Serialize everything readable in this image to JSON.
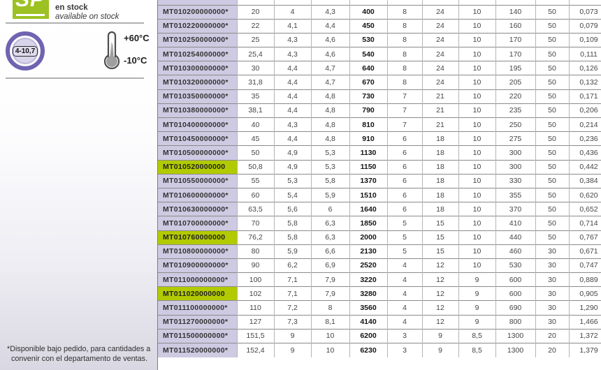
{
  "sidebar": {
    "stock_badge": {
      "logo": "SP",
      "line1": "en stock",
      "line2": "available on stock",
      "color": "#9cc122"
    },
    "size_badge": {
      "value": "4-10,7",
      "ring_color": "#6f64b0"
    },
    "temperature": {
      "max": "+60°C",
      "min": "-10°C"
    },
    "footnote": {
      "line1": "*Disponible bajo pedido, para cantidades a",
      "line2": "convenir con el departamento de ventas."
    }
  },
  "table": {
    "part_column_color": "#cecae2",
    "highlight_color": "#b2ca00",
    "rows": [
      {
        "part": "MT010200000000*",
        "highlight": false,
        "values": [
          "20",
          "4",
          "4,3",
          "400",
          "8",
          "24",
          "10",
          "140",
          "50",
          "0,073"
        ]
      },
      {
        "part": "MT010220000000*",
        "highlight": false,
        "values": [
          "22",
          "4,1",
          "4,4",
          "450",
          "8",
          "24",
          "10",
          "160",
          "50",
          "0,079"
        ]
      },
      {
        "part": "MT010250000000*",
        "highlight": false,
        "values": [
          "25",
          "4,3",
          "4,6",
          "530",
          "8",
          "24",
          "10",
          "170",
          "50",
          "0,109"
        ]
      },
      {
        "part": "MT010254000000*",
        "highlight": false,
        "values": [
          "25,4",
          "4,3",
          "4,6",
          "540",
          "8",
          "24",
          "10",
          "170",
          "50",
          "0,111"
        ]
      },
      {
        "part": "MT010300000000*",
        "highlight": false,
        "values": [
          "30",
          "4,4",
          "4,7",
          "640",
          "8",
          "24",
          "10",
          "195",
          "50",
          "0,126"
        ]
      },
      {
        "part": "MT010320000000*",
        "highlight": false,
        "values": [
          "31,8",
          "4,4",
          "4,7",
          "670",
          "8",
          "24",
          "10",
          "205",
          "50",
          "0,132"
        ]
      },
      {
        "part": "MT010350000000*",
        "highlight": false,
        "values": [
          "35",
          "4,4",
          "4,8",
          "730",
          "7",
          "21",
          "10",
          "220",
          "50",
          "0,171"
        ]
      },
      {
        "part": "MT010380000000*",
        "highlight": false,
        "values": [
          "38,1",
          "4,4",
          "4,8",
          "790",
          "7",
          "21",
          "10",
          "235",
          "50",
          "0,206"
        ]
      },
      {
        "part": "MT010400000000*",
        "highlight": false,
        "values": [
          "40",
          "4,3",
          "4,8",
          "810",
          "7",
          "21",
          "10",
          "250",
          "50",
          "0,214"
        ]
      },
      {
        "part": "MT010450000000*",
        "highlight": false,
        "values": [
          "45",
          "4,4",
          "4,8",
          "910",
          "6",
          "18",
          "10",
          "275",
          "50",
          "0,236"
        ]
      },
      {
        "part": "MT010500000000*",
        "highlight": false,
        "values": [
          "50",
          "4,9",
          "5,3",
          "1130",
          "6",
          "18",
          "10",
          "300",
          "50",
          "0,436"
        ]
      },
      {
        "part": "MT010520000000",
        "highlight": true,
        "values": [
          "50,8",
          "4,9",
          "5,3",
          "1150",
          "6",
          "18",
          "10",
          "300",
          "50",
          "0,442"
        ]
      },
      {
        "part": "MT010550000000*",
        "highlight": false,
        "values": [
          "55",
          "5,3",
          "5,8",
          "1370",
          "6",
          "18",
          "10",
          "330",
          "50",
          "0,384"
        ]
      },
      {
        "part": "MT010600000000*",
        "highlight": false,
        "values": [
          "60",
          "5,4",
          "5,9",
          "1510",
          "6",
          "18",
          "10",
          "355",
          "50",
          "0,620"
        ]
      },
      {
        "part": "MT010630000000*",
        "highlight": false,
        "values": [
          "63,5",
          "5,6",
          "6",
          "1640",
          "6",
          "18",
          "10",
          "370",
          "50",
          "0,652"
        ]
      },
      {
        "part": "MT010700000000*",
        "highlight": false,
        "values": [
          "70",
          "5,8",
          "6,3",
          "1850",
          "5",
          "15",
          "10",
          "410",
          "50",
          "0,714"
        ]
      },
      {
        "part": "MT010760000000",
        "highlight": true,
        "values": [
          "76,2",
          "5,8",
          "6,3",
          "2000",
          "5",
          "15",
          "10",
          "440",
          "50",
          "0,767"
        ]
      },
      {
        "part": "MT010800000000*",
        "highlight": false,
        "values": [
          "80",
          "5,9",
          "6,6",
          "2130",
          "5",
          "15",
          "10",
          "460",
          "30",
          "0,671"
        ]
      },
      {
        "part": "MT010900000000*",
        "highlight": false,
        "values": [
          "90",
          "6,2",
          "6,9",
          "2520",
          "4",
          "12",
          "10",
          "530",
          "30",
          "0,747"
        ]
      },
      {
        "part": "MT011000000000*",
        "highlight": false,
        "values": [
          "100",
          "7,1",
          "7,9",
          "3220",
          "4",
          "12",
          "9",
          "600",
          "30",
          "0,889"
        ]
      },
      {
        "part": "MT011020000000",
        "highlight": true,
        "values": [
          "102",
          "7,1",
          "7,9",
          "3280",
          "4",
          "12",
          "9",
          "600",
          "30",
          "0,905"
        ]
      },
      {
        "part": "MT011100000000*",
        "highlight": false,
        "values": [
          "110",
          "7,2",
          "8",
          "3560",
          "4",
          "12",
          "9",
          "690",
          "30",
          "1,290"
        ]
      },
      {
        "part": "MT011270000000*",
        "highlight": false,
        "values": [
          "127",
          "7,3",
          "8,1",
          "4140",
          "4",
          "12",
          "9",
          "800",
          "30",
          "1,466"
        ]
      },
      {
        "part": "MT011500000000*",
        "highlight": false,
        "values": [
          "151,5",
          "9",
          "10",
          "6200",
          "3",
          "9",
          "8,5",
          "1300",
          "20",
          "1,372"
        ]
      },
      {
        "part": "MT011520000000*",
        "highlight": false,
        "values": [
          "152,4",
          "9",
          "10",
          "6230",
          "3",
          "9",
          "8,5",
          "1300",
          "20",
          "1,379"
        ]
      }
    ]
  }
}
